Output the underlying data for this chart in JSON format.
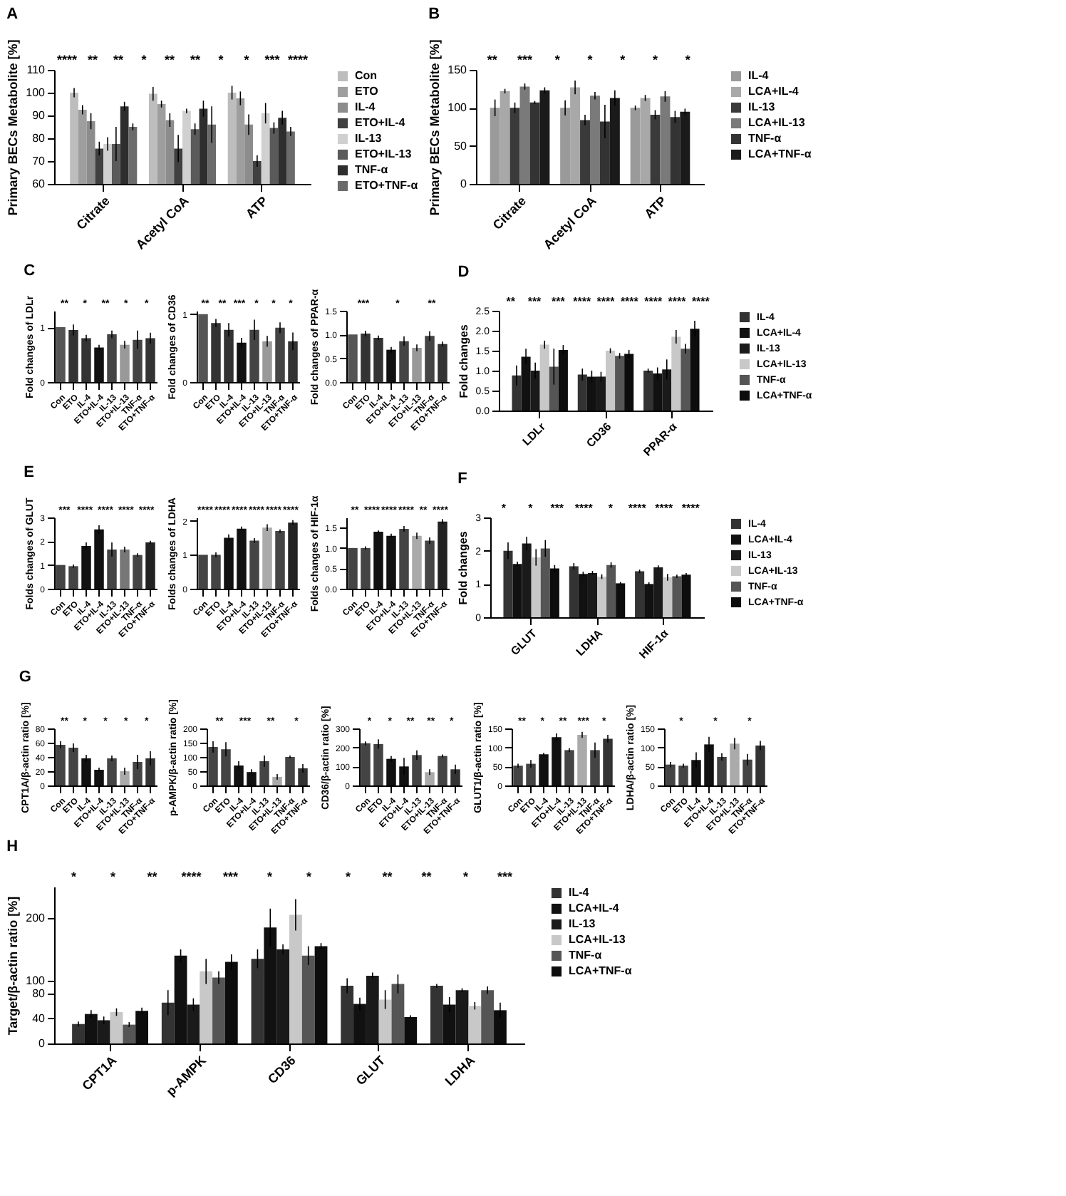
{
  "chart_data": [
    {
      "type": "bar",
      "title": "A",
      "ylabel": "Primary BECs Metabolite [%]",
      "categories": [
        "Citrate",
        "Acetyl CoA",
        "ATP"
      ],
      "ylim": [
        60,
        110
      ],
      "yticks": [
        60,
        70,
        80,
        90,
        100,
        110
      ],
      "legend": "right",
      "annotations": [
        "****",
        "**",
        "**",
        "*",
        "**",
        "**",
        "*",
        "*",
        "***",
        "****"
      ],
      "series": [
        {
          "name": "Con",
          "color": "#bdbdbd",
          "values": [
            100,
            99.5,
            100
          ],
          "errors": [
            2,
            3,
            3
          ]
        },
        {
          "name": "ETO",
          "color": "#9e9e9e",
          "values": [
            92.5,
            95,
            97.5
          ],
          "errors": [
            2,
            1.5,
            3
          ]
        },
        {
          "name": "IL-4",
          "color": "#8c8c8c",
          "values": [
            87.5,
            88,
            86
          ],
          "errors": [
            3.5,
            3,
            4.5
          ]
        },
        {
          "name": "ETO+IL-4",
          "color": "#404040",
          "values": [
            75.5,
            75.5,
            70
          ],
          "errors": [
            3,
            6,
            2.5
          ]
        },
        {
          "name": "IL-13",
          "color": "#d0d0d0",
          "values": [
            77.5,
            92,
            91
          ],
          "errors": [
            3,
            1,
            4.5
          ]
        },
        {
          "name": "ETO+IL-13",
          "color": "#5a5a5a",
          "values": [
            77.5,
            84,
            84.5
          ],
          "errors": [
            7.5,
            2.5,
            2.5
          ]
        },
        {
          "name": "TNF-α",
          "color": "#2e2e2e",
          "values": [
            94,
            93,
            89
          ],
          "errors": [
            2,
            3.5,
            3
          ]
        },
        {
          "name": "ETO+TNF-α",
          "color": "#6b6b6b",
          "values": [
            85,
            86,
            83
          ],
          "errors": [
            1.5,
            8,
            2
          ]
        }
      ]
    },
    {
      "type": "bar",
      "title": "B",
      "ylabel": "Primary BECs Metabolite [%]",
      "categories": [
        "Citrate",
        "Acetyl CoA",
        "ATP"
      ],
      "ylim": [
        0,
        150
      ],
      "yticks": [
        0,
        50,
        100,
        150
      ],
      "legend": "right",
      "annotations": [
        "**",
        "***",
        "*",
        "*",
        "*",
        "*",
        "*"
      ],
      "series": [
        {
          "name": "IL-4",
          "color": "#9a9a9a",
          "values": [
            100,
            100,
            100
          ],
          "errors": [
            11,
            10,
            3
          ]
        },
        {
          "name": "LCA+IL-4",
          "color": "#a8a8a8",
          "values": [
            122,
            127,
            113
          ],
          "errors": [
            3,
            9,
            4
          ]
        },
        {
          "name": "IL-13",
          "color": "#3a3a3a",
          "values": [
            100,
            84,
            91
          ],
          "errors": [
            7,
            7,
            6
          ]
        },
        {
          "name": "LCA+IL-13",
          "color": "#7a7a7a",
          "values": [
            128,
            116,
            115
          ],
          "errors": [
            4,
            5,
            7
          ]
        },
        {
          "name": "TNF-α",
          "color": "#333333",
          "values": [
            107,
            82,
            88
          ],
          "errors": [
            2,
            22,
            8
          ]
        },
        {
          "name": "LCA+TNF-α",
          "color": "#1a1a1a",
          "values": [
            123,
            113,
            95
          ],
          "errors": [
            4,
            10,
            4
          ]
        }
      ]
    },
    {
      "type": "bar",
      "title": "C",
      "ylabel": "Fold changes of LDLr",
      "categories": [
        "Con",
        "ETO",
        "IL-4",
        "ETO+IL-4",
        "IL-13",
        "ETO+IL-13",
        "TNF-α",
        "ETO+TNF-α"
      ],
      "ylim": [
        0,
        1.3
      ],
      "yticks": [
        0,
        1
      ],
      "annotations": [
        "**",
        "*",
        "**",
        "*",
        "*"
      ],
      "values": [
        1,
        0.95,
        0.8,
        0.63,
        0.87,
        0.68,
        0.77,
        0.8
      ],
      "errors": [
        null,
        0.1,
        0.06,
        0.05,
        0.07,
        0.07,
        0.17,
        0.1
      ],
      "colors": [
        "#555555",
        "#333333",
        "#333333",
        "#111111",
        "#444444",
        "#999999",
        "#444444",
        "#333333"
      ]
    },
    {
      "type": "bar",
      "ylabel": "Fold changes of CD36",
      "categories": [
        "Con",
        "ETO",
        "IL-4",
        "ETO+IL-4",
        "IL-13",
        "ETO+IL-13",
        "TNF-α",
        "ETO+TNF-α"
      ],
      "ylim": [
        0,
        1.05
      ],
      "yticks": [
        0,
        1
      ],
      "annotations": [
        "**",
        "**",
        "***",
        "*",
        "*",
        "*"
      ],
      "values": [
        1,
        0.87,
        0.77,
        0.58,
        0.77,
        0.6,
        0.8,
        0.6
      ],
      "errors": [
        null,
        0.06,
        0.1,
        0.07,
        0.15,
        0.08,
        0.08,
        0.13
      ],
      "colors": [
        "#555555",
        "#333333",
        "#333333",
        "#111111",
        "#444444",
        "#999999",
        "#444444",
        "#333333"
      ]
    },
    {
      "type": "bar",
      "ylabel": "Fold changes of PPAR-α",
      "categories": [
        "Con",
        "ETO",
        "IL-4",
        "ETO+IL-4",
        "IL-13",
        "ETO+IL-13",
        "TNF-α",
        "ETO+TNF-α"
      ],
      "ylim": [
        0,
        1.5
      ],
      "yticks": [
        {
          "value": 0,
          "label": "0.0"
        },
        0.5,
        {
          "value": 1,
          "label": "1.0"
        },
        1.5
      ],
      "annotations": [
        "***",
        "*",
        "**"
      ],
      "values": [
        1,
        1.02,
        0.93,
        0.68,
        0.86,
        0.72,
        0.97,
        0.8
      ],
      "errors": [
        null,
        0.06,
        0.05,
        0.06,
        0.1,
        0.07,
        0.1,
        0.05
      ],
      "colors": [
        "#555555",
        "#333333",
        "#333333",
        "#111111",
        "#444444",
        "#999999",
        "#444444",
        "#333333"
      ]
    },
    {
      "type": "bar",
      "title": "D",
      "ylabel": "Fold changes",
      "categories": [
        "LDLr",
        "CD36",
        "PPAR-α"
      ],
      "ylim": [
        0,
        2.5
      ],
      "yticks": [
        {
          "value": 0,
          "label": "0.0"
        },
        0.5,
        {
          "value": 1,
          "label": "1.0"
        },
        1.5,
        {
          "value": 2,
          "label": "2.0"
        },
        2.5
      ],
      "legend": "right",
      "annotations": [
        "**",
        "***",
        "***",
        "****",
        "****",
        "****",
        "****",
        "****",
        "****"
      ],
      "series": [
        {
          "name": "IL-4",
          "color": "#333333",
          "values": [
            0.88,
            0.9,
            1.0
          ],
          "errors": [
            0.25,
            0.15,
            0.05
          ]
        },
        {
          "name": "LCA+IL-4",
          "color": "#111111",
          "values": [
            1.35,
            0.85,
            0.93
          ],
          "errors": [
            0.2,
            0.15,
            0.15
          ]
        },
        {
          "name": "IL-13",
          "color": "#1a1a1a",
          "values": [
            1.0,
            0.85,
            1.03
          ],
          "errors": [
            0.2,
            0.12,
            0.25
          ]
        },
        {
          "name": "LCA+IL-13",
          "color": "#c8c8c8",
          "values": [
            1.65,
            1.5,
            1.85
          ],
          "errors": [
            0.1,
            0.06,
            0.17
          ]
        },
        {
          "name": "TNF-α",
          "color": "#555555",
          "values": [
            1.1,
            1.37,
            1.55
          ],
          "errors": [
            0.45,
            0.07,
            0.12
          ]
        },
        {
          "name": "LCA+TNF-α",
          "color": "#0d0d0d",
          "values": [
            1.52,
            1.42,
            2.05
          ],
          "errors": [
            0.12,
            0.1,
            0.2
          ]
        }
      ]
    },
    {
      "type": "bar",
      "title": "E",
      "ylabel": "Folds changes of GLUT",
      "categories": [
        "Con",
        "ETO",
        "IL-4",
        "ETO+IL-4",
        "IL-13",
        "ETO+IL-13",
        "TNF-α",
        "ETO+TNF-α"
      ],
      "ylim": [
        0,
        3
      ],
      "yticks": [
        0,
        1,
        2,
        3
      ],
      "annotations": [
        "***",
        "****",
        "****",
        "****",
        "****"
      ],
      "values": [
        1,
        0.95,
        1.8,
        2.5,
        1.65,
        1.65,
        1.42,
        1.95
      ],
      "errors": [
        null,
        0.07,
        0.15,
        0.18,
        0.3,
        0.12,
        0.07,
        0.07
      ],
      "colors": [
        "#444444",
        "#444444",
        "#111111",
        "#111111",
        "#444444",
        "#777777",
        "#444444",
        "#222222"
      ]
    },
    {
      "type": "bar",
      "ylabel": "Folds changes of LDHA",
      "categories": [
        "Con",
        "ETO",
        "IL-4",
        "ETO+IL-4",
        "IL-13",
        "ETO+IL-13",
        "TNF-α",
        "ETO+TNF-α"
      ],
      "ylim": [
        0,
        2.1
      ],
      "yticks": [
        0,
        1,
        2
      ],
      "annotations": [
        "****",
        "****",
        "****",
        "****",
        "****",
        "****"
      ],
      "values": [
        1,
        1,
        1.5,
        1.77,
        1.42,
        1.8,
        1.7,
        1.95
      ],
      "errors": [
        null,
        0.07,
        0.1,
        0.06,
        0.07,
        0.1,
        0.05,
        0.07
      ],
      "colors": [
        "#444444",
        "#444444",
        "#111111",
        "#111111",
        "#444444",
        "#aaaaaa",
        "#444444",
        "#222222"
      ]
    },
    {
      "type": "bar",
      "ylabel": "Folds changes of HIF-1α",
      "categories": [
        "Con",
        "ETO",
        "IL-4",
        "ETO+IL-4",
        "IL-13",
        "ETO+IL-13",
        "TNF-α",
        "ETO+TNF-α"
      ],
      "ylim": [
        0,
        1.75
      ],
      "yticks": [
        {
          "value": 0,
          "label": "0.0"
        },
        0.5,
        {
          "value": 1,
          "label": "1.0"
        },
        1.5
      ],
      "annotations": [
        "**",
        "****",
        "****",
        "****",
        "**",
        "****"
      ],
      "values": [
        1,
        1,
        1.4,
        1.3,
        1.47,
        1.3,
        1.18,
        1.65
      ],
      "errors": [
        null,
        0.04,
        0.03,
        0.05,
        0.07,
        0.08,
        0.08,
        0.06
      ],
      "colors": [
        "#444444",
        "#444444",
        "#111111",
        "#111111",
        "#444444",
        "#aaaaaa",
        "#444444",
        "#222222"
      ]
    },
    {
      "type": "bar",
      "title": "F",
      "ylabel": "Fold changes",
      "categories": [
        "GLUT",
        "LDHA",
        "HIF-1α"
      ],
      "ylim": [
        0,
        3
      ],
      "yticks": [
        0,
        1,
        2,
        3
      ],
      "legend": "right",
      "annotations": [
        "*",
        "*",
        "***",
        "****",
        "*",
        "****",
        "****",
        "****"
      ],
      "series": [
        {
          "name": "IL-4",
          "color": "#333333",
          "values": [
            2.0,
            1.53,
            1.38
          ],
          "errors": [
            0.25,
            0.1,
            0.05
          ]
        },
        {
          "name": "LCA+IL-4",
          "color": "#111111",
          "values": [
            1.6,
            1.3,
            1.0
          ],
          "errors": [
            0.07,
            0.07,
            0.05
          ]
        },
        {
          "name": "IL-13",
          "color": "#1a1a1a",
          "values": [
            2.22,
            1.33,
            1.5
          ],
          "errors": [
            0.2,
            0.06,
            0.06
          ]
        },
        {
          "name": "LCA+IL-13",
          "color": "#c8c8c8",
          "values": [
            1.8,
            1.22,
            1.2
          ],
          "errors": [
            0.25,
            0.07,
            0.1
          ]
        },
        {
          "name": "TNF-α",
          "color": "#555555",
          "values": [
            2.07,
            1.57,
            1.23
          ],
          "errors": [
            0.25,
            0.08,
            0.05
          ]
        },
        {
          "name": "LCA+TNF-α",
          "color": "#0d0d0d",
          "values": [
            1.47,
            1.02,
            1.28
          ],
          "errors": [
            0.1,
            0.04,
            0.05
          ]
        }
      ]
    },
    {
      "type": "bar",
      "title": "G",
      "ylabel": "CPT1A/β-actin ratio [%]",
      "categories": [
        "Con",
        "ETO",
        "IL-4",
        "ETO+IL-4",
        "IL-13",
        "ETO+IL-13",
        "TNF-α",
        "ETO+TNF-α"
      ],
      "ylim": [
        0,
        80
      ],
      "yticks": [
        0,
        20,
        40,
        60,
        80
      ],
      "annotations": [
        "**",
        "*",
        "*",
        "*",
        "*"
      ],
      "values": [
        57,
        53,
        38,
        22,
        38,
        20,
        33,
        38
      ],
      "errors": [
        5,
        6,
        5,
        3,
        4,
        5,
        10,
        10
      ],
      "colors": [
        "#444444",
        "#444444",
        "#111111",
        "#111111",
        "#444444",
        "#aaaaaa",
        "#444444",
        "#333333"
      ]
    },
    {
      "type": "bar",
      "ylabel": "p-AMPK/β-actin ratio [%]",
      "categories": [
        "Con",
        "ETO",
        "IL-4",
        "ETO+IL-4",
        "IL-13",
        "ETO+IL-13",
        "TNF-α",
        "ETO+TNF-α"
      ],
      "ylim": [
        0,
        200
      ],
      "yticks": [
        0,
        50,
        100,
        150,
        200
      ],
      "annotations": [
        "**",
        "***",
        "**",
        "*"
      ],
      "values": [
        135,
        127,
        70,
        47,
        85,
        30,
        100,
        60
      ],
      "errors": [
        20,
        25,
        15,
        10,
        20,
        10,
        5,
        15
      ],
      "colors": [
        "#444444",
        "#444444",
        "#111111",
        "#111111",
        "#444444",
        "#aaaaaa",
        "#444444",
        "#333333"
      ]
    },
    {
      "type": "bar",
      "ylabel": "CD36/β-actin ratio [%]",
      "categories": [
        "Con",
        "ETO",
        "IL-4",
        "ETO+IL-4",
        "IL-13",
        "ETO+IL-13",
        "TNF-α",
        "ETO+TNF-α"
      ],
      "ylim": [
        0,
        300
      ],
      "yticks": [
        0,
        100,
        200,
        300
      ],
      "annotations": [
        "*",
        "*",
        "**",
        "**",
        "*"
      ],
      "values": [
        222,
        218,
        140,
        100,
        160,
        70,
        155,
        85
      ],
      "errors": [
        10,
        25,
        15,
        45,
        25,
        15,
        8,
        25
      ],
      "colors": [
        "#444444",
        "#444444",
        "#111111",
        "#111111",
        "#444444",
        "#aaaaaa",
        "#444444",
        "#333333"
      ]
    },
    {
      "type": "bar",
      "ylabel": "GLUT1/β-actin ratio [%]",
      "categories": [
        "Con",
        "ETO",
        "IL-4",
        "ETO+IL-4",
        "IL-13",
        "ETO+IL-13",
        "TNF-α",
        "ETO+TNF-α"
      ],
      "ylim": [
        0,
        150
      ],
      "yticks": [
        0,
        50,
        100,
        150
      ],
      "annotations": [
        "**",
        "*",
        "**",
        "***",
        "*"
      ],
      "values": [
        52,
        57,
        82,
        127,
        93,
        133,
        93,
        123
      ],
      "errors": [
        5,
        10,
        4,
        10,
        5,
        8,
        20,
        10
      ],
      "colors": [
        "#444444",
        "#444444",
        "#111111",
        "#111111",
        "#444444",
        "#aaaaaa",
        "#444444",
        "#333333"
      ]
    },
    {
      "type": "bar",
      "ylabel": "LDHA/β-actin ratio [%]",
      "categories": [
        "Con",
        "ETO",
        "IL-4",
        "ETO+IL-4",
        "IL-13",
        "ETO+IL-13",
        "TNF-α",
        "ETO+TNF-α"
      ],
      "ylim": [
        0,
        150
      ],
      "yticks": [
        0,
        50,
        100,
        150
      ],
      "annotations": [
        "*",
        "*",
        "*"
      ],
      "values": [
        55,
        52,
        67,
        108,
        75,
        110,
        68,
        105
      ],
      "errors": [
        7,
        5,
        20,
        20,
        10,
        15,
        15,
        12
      ],
      "colors": [
        "#444444",
        "#444444",
        "#111111",
        "#111111",
        "#444444",
        "#aaaaaa",
        "#444444",
        "#333333"
      ]
    },
    {
      "type": "bar",
      "title": "H",
      "ylabel": "Target/β-actin ratio [%]",
      "categories": [
        "CPT1A",
        "p-AMPK",
        "CD36",
        "GLUT",
        "LDHA"
      ],
      "ylim": [
        0,
        250
      ],
      "yticks": [
        0,
        40,
        80,
        100,
        200
      ],
      "legend": "right",
      "annotations": [
        "*",
        "*",
        "**",
        "****",
        "***",
        "*",
        "*",
        "*",
        "**",
        "**",
        "*",
        "***"
      ],
      "series": [
        {
          "name": "IL-4",
          "color": "#333333",
          "values": [
            31,
            65,
            135,
            92,
            92
          ],
          "errors": [
            4,
            20,
            15,
            12,
            3
          ]
        },
        {
          "name": "LCA+IL-4",
          "color": "#111111",
          "values": [
            47,
            140,
            185,
            63,
            62
          ],
          "errors": [
            6,
            10,
            30,
            10,
            12
          ]
        },
        {
          "name": "IL-13",
          "color": "#1a1a1a",
          "values": [
            37,
            62,
            150,
            108,
            85
          ],
          "errors": [
            6,
            10,
            8,
            5,
            3
          ]
        },
        {
          "name": "LCA+IL-13",
          "color": "#c8c8c8",
          "values": [
            50,
            115,
            205,
            70,
            60
          ],
          "errors": [
            6,
            20,
            25,
            15,
            6
          ]
        },
        {
          "name": "TNF-α",
          "color": "#555555",
          "values": [
            30,
            105,
            140,
            95,
            85
          ],
          "errors": [
            4,
            10,
            15,
            15,
            6
          ]
        },
        {
          "name": "LCA+TNF-α",
          "color": "#0d0d0d",
          "values": [
            52,
            130,
            155,
            42,
            53
          ],
          "errors": [
            5,
            12,
            5,
            3,
            12
          ]
        }
      ]
    }
  ]
}
